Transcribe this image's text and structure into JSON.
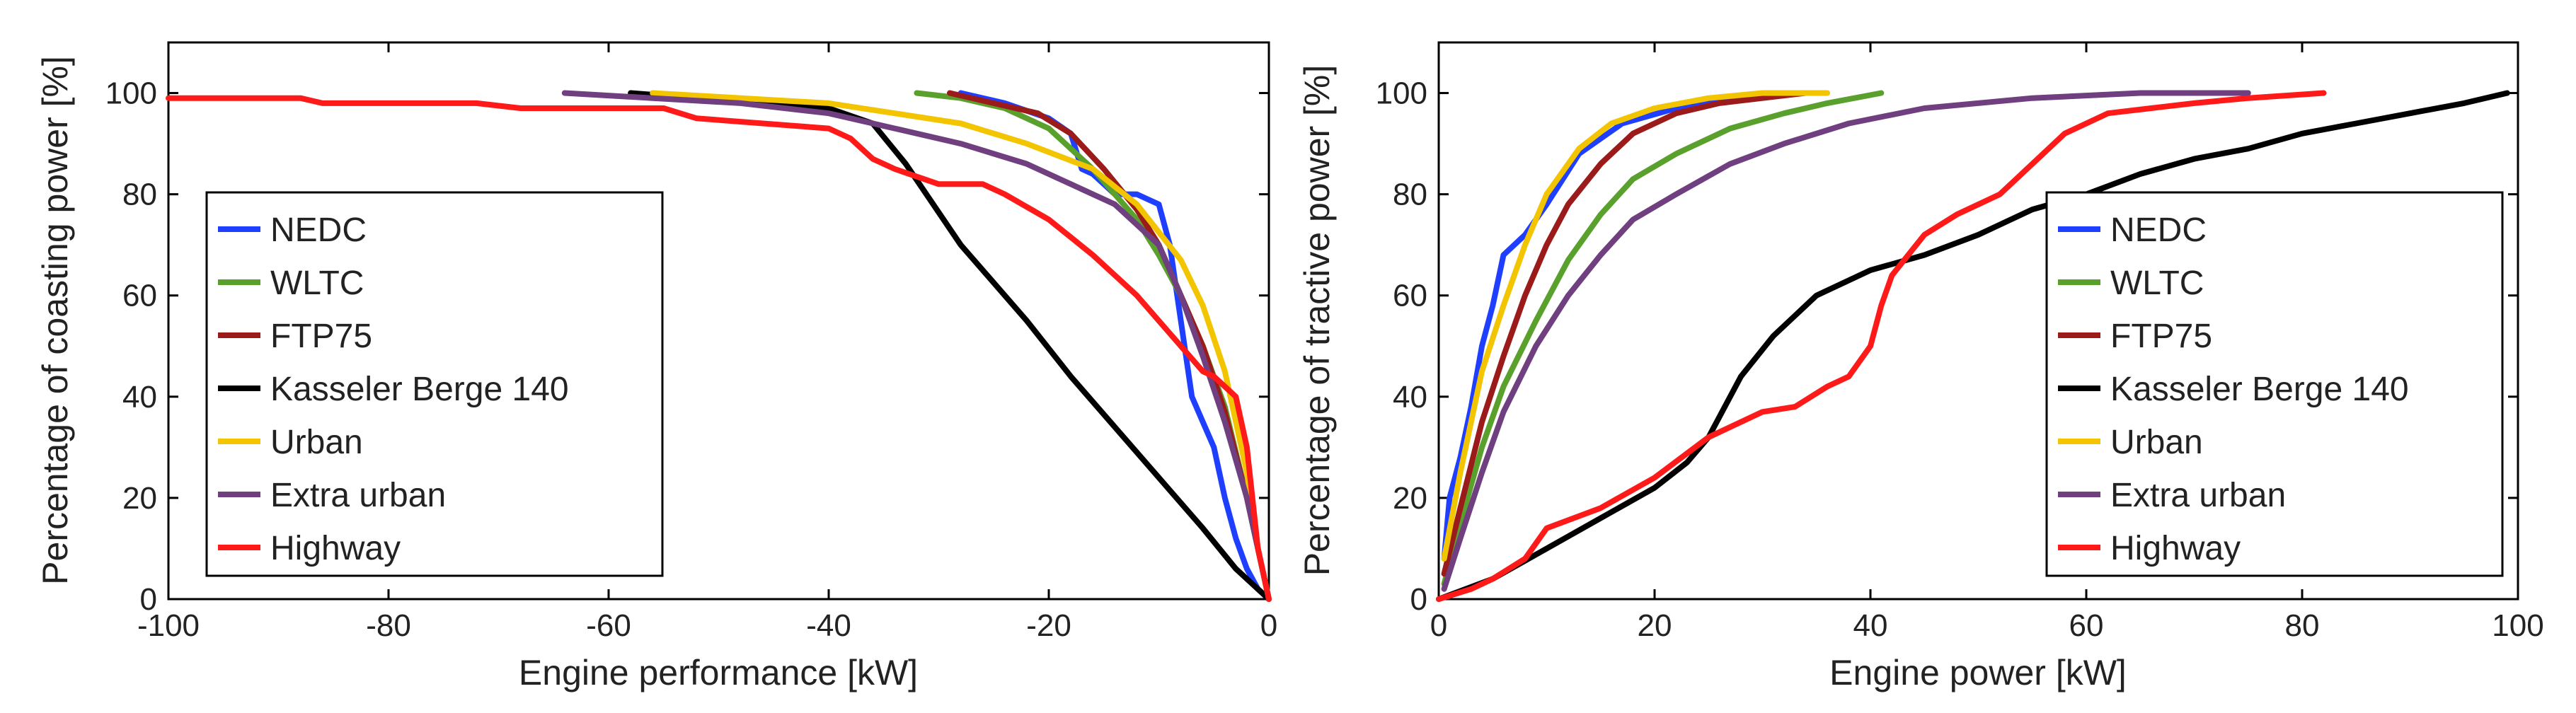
{
  "chart_data": [
    {
      "type": "line",
      "xlabel": "Engine performance [kW]",
      "ylabel": "Percentage of coasting power [%]",
      "xlim": [
        -100,
        0
      ],
      "ylim": [
        0,
        110
      ],
      "xticks": [
        "-100",
        "-80",
        "-60",
        "-40",
        "-20",
        "0"
      ],
      "xtick_values": [
        -100,
        -80,
        -60,
        -40,
        -20,
        0
      ],
      "yticks": [
        "0",
        "20",
        "40",
        "60",
        "80",
        "100"
      ],
      "ytick_values": [
        0,
        20,
        40,
        60,
        80,
        100
      ],
      "legend_position": "center-left",
      "series": [
        {
          "name": "NEDC",
          "color": "#1f3fff",
          "x": [
            -28,
            -24,
            -20,
            -18,
            -17,
            -16,
            -14,
            -12,
            -10,
            -9,
            -8,
            -7,
            -6,
            -5,
            -4,
            -3,
            -2,
            -1,
            0
          ],
          "y": [
            100,
            98,
            95,
            92,
            85,
            84,
            80,
            80,
            78,
            70,
            55,
            40,
            35,
            30,
            20,
            12,
            6,
            2,
            0
          ]
        },
        {
          "name": "WLTC",
          "color": "#5aa02c",
          "x": [
            -32,
            -28,
            -24,
            -20,
            -16,
            -12,
            -10,
            -8,
            -6,
            -4,
            -2,
            -1,
            0
          ],
          "y": [
            100,
            99,
            97,
            93,
            85,
            75,
            68,
            60,
            50,
            38,
            20,
            10,
            0
          ]
        },
        {
          "name": "FTP75",
          "color": "#9b1b1b",
          "x": [
            -29,
            -25,
            -21,
            -18,
            -15,
            -12,
            -10,
            -8,
            -6,
            -4,
            -2,
            -1,
            0
          ],
          "y": [
            100,
            98,
            96,
            92,
            85,
            77,
            70,
            60,
            50,
            37,
            20,
            10,
            0
          ]
        },
        {
          "name": "Kasseler Berge 140",
          "color": "#000000",
          "x": [
            -58,
            -52,
            -45,
            -40,
            -36,
            -33,
            -28,
            -22,
            -18,
            -14,
            -10,
            -6,
            -3,
            0
          ],
          "y": [
            100,
            99,
            98,
            97,
            94,
            86,
            70,
            55,
            44,
            34,
            24,
            14,
            6,
            0
          ]
        },
        {
          "name": "Urban",
          "color": "#f2c500",
          "x": [
            -56,
            -48,
            -40,
            -34,
            -28,
            -22,
            -16,
            -12,
            -8,
            -6,
            -4,
            -2,
            -1,
            0
          ],
          "y": [
            100,
            99,
            98,
            96,
            94,
            90,
            85,
            78,
            67,
            58,
            45,
            25,
            10,
            0
          ]
        },
        {
          "name": "Extra urban",
          "color": "#6f3f7f",
          "x": [
            -64,
            -56,
            -48,
            -40,
            -34,
            -28,
            -22,
            -18,
            -14,
            -10,
            -8,
            -6,
            -4,
            -2,
            0
          ],
          "y": [
            100,
            99,
            98,
            96,
            93,
            90,
            86,
            82,
            78,
            70,
            60,
            48,
            35,
            20,
            0
          ]
        },
        {
          "name": "Highway",
          "color": "#ff1a1a",
          "x": [
            -100,
            -88,
            -86,
            -72,
            -68,
            -55,
            -52,
            -40,
            -38,
            -36,
            -34,
            -30,
            -26,
            -24,
            -20,
            -16,
            -12,
            -8,
            -6,
            -5,
            -4,
            -3,
            -2,
            -1,
            0
          ],
          "y": [
            99,
            99,
            98,
            98,
            97,
            97,
            95,
            93,
            91,
            87,
            85,
            82,
            82,
            80,
            75,
            68,
            60,
            50,
            45,
            44,
            42,
            40,
            30,
            10,
            0
          ]
        }
      ]
    },
    {
      "type": "line",
      "xlabel": "Engine power [kW]",
      "ylabel": "Percentage of tractive power [%]",
      "xlim": [
        0,
        100
      ],
      "ylim": [
        0,
        110
      ],
      "xticks": [
        "0",
        "20",
        "40",
        "60",
        "80",
        "100"
      ],
      "xtick_values": [
        0,
        20,
        40,
        60,
        80,
        100
      ],
      "yticks": [
        "0",
        "20",
        "40",
        "60",
        "80",
        "100"
      ],
      "ytick_values": [
        0,
        20,
        40,
        60,
        80,
        100
      ],
      "legend_position": "center-right",
      "series": [
        {
          "name": "NEDC",
          "color": "#1f3fff",
          "x": [
            0.5,
            1,
            2,
            3,
            4,
            5,
            6,
            8,
            10,
            13,
            17,
            22,
            28,
            33
          ],
          "y": [
            8,
            20,
            28,
            38,
            50,
            58,
            68,
            72,
            78,
            88,
            94,
            97,
            99,
            100
          ]
        },
        {
          "name": "WLTC",
          "color": "#5aa02c",
          "x": [
            0.5,
            2,
            4,
            6,
            9,
            12,
            15,
            18,
            22,
            27,
            32,
            36,
            41
          ],
          "y": [
            3,
            15,
            30,
            42,
            55,
            67,
            76,
            83,
            88,
            93,
            96,
            98,
            100
          ]
        },
        {
          "name": "FTP75",
          "color": "#9b1b1b",
          "x": [
            0.5,
            2,
            4,
            6,
            8,
            10,
            12,
            15,
            18,
            22,
            26,
            30,
            34
          ],
          "y": [
            5,
            18,
            35,
            48,
            60,
            70,
            78,
            86,
            92,
            96,
            98,
            99,
            100
          ]
        },
        {
          "name": "Kasseler Berge 140",
          "color": "#000000",
          "x": [
            0,
            5,
            10,
            15,
            20,
            23,
            25,
            28,
            31,
            35,
            40,
            45,
            50,
            55,
            60,
            65,
            70,
            75,
            80,
            85,
            90,
            95,
            99
          ],
          "y": [
            0,
            4,
            10,
            16,
            22,
            27,
            32,
            44,
            52,
            60,
            65,
            68,
            72,
            77,
            80,
            84,
            87,
            89,
            92,
            94,
            96,
            98,
            100
          ]
        },
        {
          "name": "Urban",
          "color": "#f2c500",
          "x": [
            0.5,
            2,
            4,
            6,
            8,
            10,
            13,
            16,
            20,
            25,
            30,
            36
          ],
          "y": [
            8,
            25,
            45,
            58,
            70,
            80,
            89,
            94,
            97,
            99,
            100,
            100
          ]
        },
        {
          "name": "Extra urban",
          "color": "#6f3f7f",
          "x": [
            0.5,
            2,
            4,
            6,
            9,
            12,
            15,
            18,
            22,
            27,
            32,
            38,
            45,
            55,
            65,
            75
          ],
          "y": [
            2,
            12,
            25,
            37,
            50,
            60,
            68,
            75,
            80,
            86,
            90,
            94,
            97,
            99,
            100,
            100
          ]
        },
        {
          "name": "Highway",
          "color": "#ff1a1a",
          "x": [
            0,
            3,
            5,
            8,
            10,
            15,
            20,
            25,
            30,
            33,
            36,
            38,
            40,
            41,
            42,
            45,
            48,
            52,
            55,
            58,
            62,
            66,
            70,
            75,
            82
          ],
          "y": [
            0,
            2,
            4,
            8,
            14,
            18,
            24,
            32,
            37,
            38,
            42,
            44,
            50,
            58,
            64,
            72,
            76,
            80,
            86,
            92,
            96,
            97,
            98,
            99,
            100
          ]
        }
      ]
    }
  ]
}
